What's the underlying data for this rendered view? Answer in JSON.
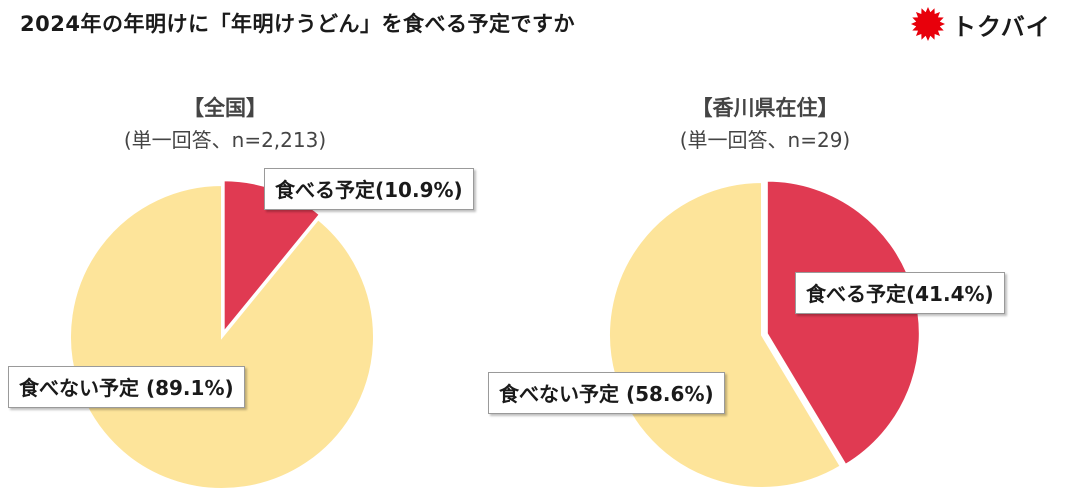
{
  "title": "2024年の年明けに「年明けうどん」を食べる予定ですか",
  "logo": {
    "text": "トクバイ",
    "color": "#e8000b",
    "icon": "sun-burst-icon"
  },
  "colors": {
    "eat": "#e03a52",
    "not_eat": "#fde49a"
  },
  "chart_data": [
    {
      "type": "pie",
      "title": "【全国】",
      "subtitle": "(単一回答、n=2,213)",
      "series": [
        {
          "name": "食べる予定",
          "value": 10.9,
          "label": "食べる予定(10.9%)",
          "color": "#e03a52",
          "exploded": true
        },
        {
          "name": "食べない予定",
          "value": 89.1,
          "label": "食べない予定 (89.1%)",
          "color": "#fde49a",
          "exploded": false
        }
      ]
    },
    {
      "type": "pie",
      "title": "【香川県在住】",
      "subtitle": "(単一回答、n=29)",
      "series": [
        {
          "name": "食べる予定",
          "value": 41.4,
          "label": "食べる予定(41.4%)",
          "color": "#e03a52",
          "exploded": true
        },
        {
          "name": "食べない予定",
          "value": 58.6,
          "label": "食べない予定 (58.6%)",
          "color": "#fde49a",
          "exploded": false
        }
      ]
    }
  ]
}
